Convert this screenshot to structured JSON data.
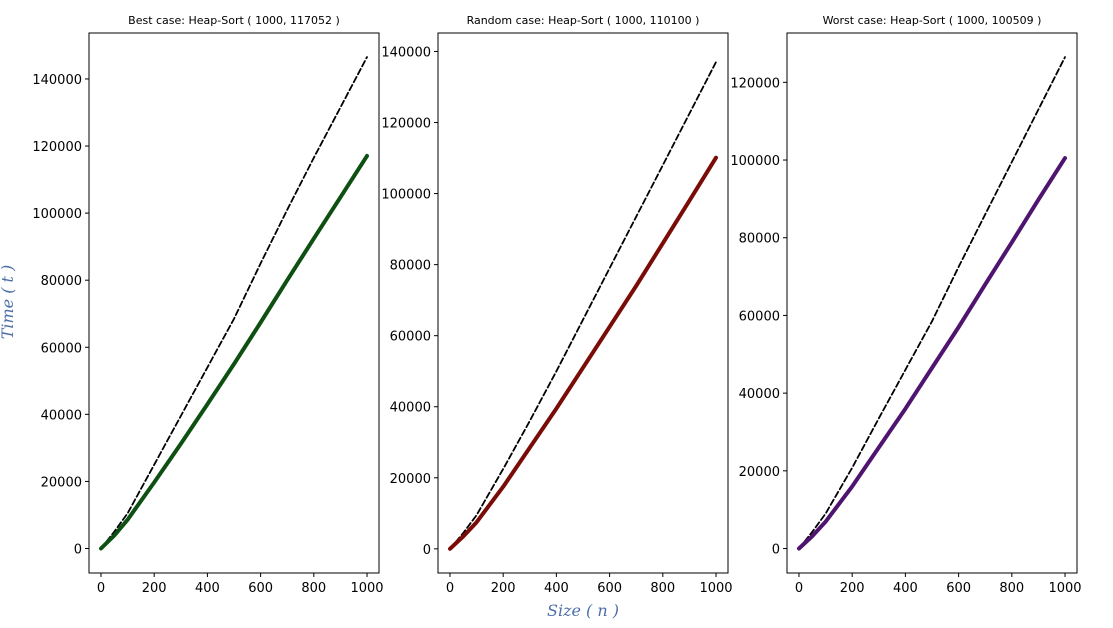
{
  "figure": {
    "ylabel": "Time ( t )",
    "xlabel": "Size ( n )",
    "reference_color": "#000000"
  },
  "chart_data": [
    {
      "type": "line",
      "title": "Best case: Heap-Sort ( 1000, 117052 )",
      "xlim": [
        -45,
        1045
      ],
      "ylim": [
        -7300,
        153700
      ],
      "xticks": [
        "0",
        "200",
        "400",
        "600",
        "800",
        "1000"
      ],
      "yticks": [
        "0",
        "20000",
        "40000",
        "60000",
        "80000",
        "100000",
        "120000",
        "140000"
      ],
      "series_color": "#0e4f12",
      "series": [
        {
          "role": "measured",
          "x": [
            0,
            50,
            100,
            200,
            300,
            400,
            500,
            600,
            700,
            800,
            900,
            1000
          ],
          "y": [
            0,
            3900,
            8600,
            19700,
            31200,
            43000,
            55000,
            67400,
            80000,
            92400,
            104700,
            117052
          ]
        },
        {
          "role": "reference",
          "x": [
            0,
            50,
            100,
            200,
            300,
            400,
            500,
            600,
            700,
            800,
            900,
            1000
          ],
          "y": [
            0,
            5000,
            10500,
            25000,
            39500,
            54000,
            68500,
            85000,
            101000,
            116500,
            131500,
            146500
          ]
        }
      ]
    },
    {
      "type": "line",
      "title": "Random case: Heap-Sort ( 1000, 110100 )",
      "xlim": [
        -45,
        1045
      ],
      "ylim": [
        -6800,
        145200
      ],
      "xticks": [
        "0",
        "200",
        "400",
        "600",
        "800",
        "1000"
      ],
      "yticks": [
        "0",
        "20000",
        "40000",
        "60000",
        "80000",
        "100000",
        "120000",
        "140000"
      ],
      "series_color": "#7a0c07",
      "series": [
        {
          "role": "measured",
          "x": [
            0,
            50,
            100,
            200,
            300,
            400,
            500,
            600,
            700,
            800,
            900,
            1000
          ],
          "y": [
            0,
            3500,
            7500,
            17500,
            28500,
            39500,
            51000,
            62500,
            74000,
            86000,
            98000,
            110100
          ]
        },
        {
          "role": "reference",
          "x": [
            0,
            50,
            100,
            200,
            300,
            400,
            500,
            600,
            700,
            800,
            900,
            1000
          ],
          "y": [
            0,
            4500,
            9500,
            22500,
            36000,
            50000,
            64500,
            79000,
            93500,
            108000,
            122500,
            137000
          ]
        }
      ]
    },
    {
      "type": "line",
      "title": "Worst case: Heap-Sort ( 1000, 100509 )",
      "xlim": [
        -45,
        1045
      ],
      "ylim": [
        -6300,
        132700
      ],
      "xticks": [
        "0",
        "200",
        "400",
        "600",
        "800",
        "1000"
      ],
      "yticks": [
        "0",
        "20000",
        "40000",
        "60000",
        "80000",
        "100000",
        "120000"
      ],
      "series_color": "#4f1470",
      "series": [
        {
          "role": "measured",
          "x": [
            0,
            50,
            100,
            200,
            300,
            400,
            500,
            600,
            700,
            800,
            900,
            1000
          ],
          "y": [
            0,
            3200,
            6900,
            16000,
            26000,
            36000,
            46500,
            57000,
            68000,
            78800,
            89800,
            100509
          ]
        },
        {
          "role": "reference",
          "x": [
            0,
            50,
            100,
            200,
            300,
            400,
            500,
            600,
            700,
            800,
            900,
            1000
          ],
          "y": [
            0,
            4300,
            9000,
            20800,
            33500,
            46000,
            58500,
            72500,
            86000,
            99500,
            113000,
            126500
          ]
        }
      ]
    }
  ]
}
